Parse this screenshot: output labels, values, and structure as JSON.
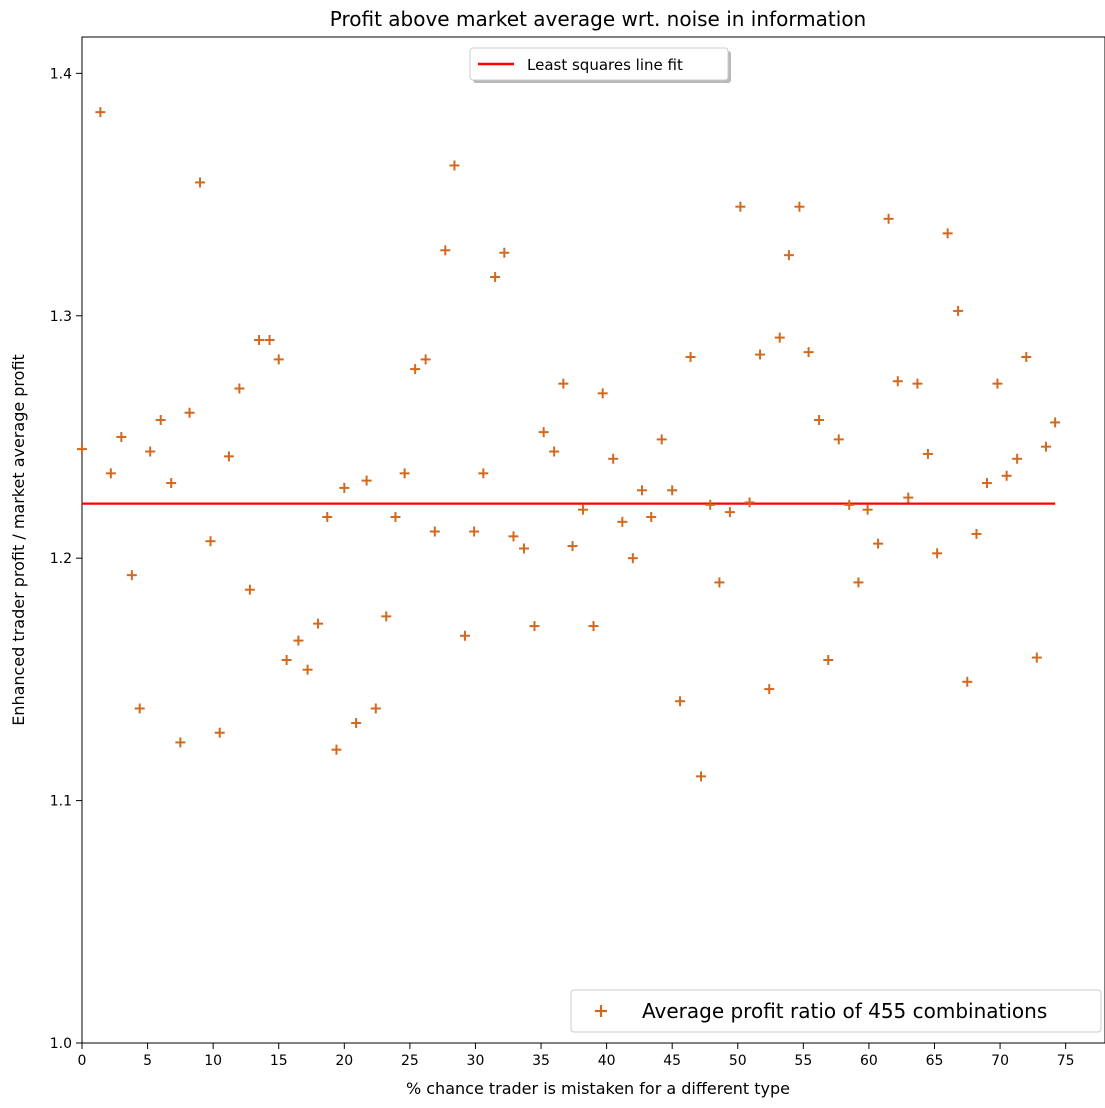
{
  "chart_data": {
    "type": "scatter",
    "title": "Profit above market average wrt. noise in information",
    "xlabel": "% chance trader is mistaken for a different type",
    "ylabel": "Enhanced trader profit / market average profit",
    "xlim": [
      0,
      78
    ],
    "ylim": [
      1.0,
      1.415
    ],
    "xticks": [
      0,
      5,
      10,
      15,
      20,
      25,
      30,
      35,
      40,
      45,
      50,
      55,
      60,
      65,
      70,
      75
    ],
    "yticks": [
      1.0,
      1.1,
      1.2,
      1.3,
      1.4
    ],
    "grid": false,
    "series": [
      {
        "name": "Average profit ratio of 455 combinations",
        "kind": "scatter",
        "marker": "+",
        "color": "#d2691e",
        "points": [
          [
            0.0,
            1.245
          ],
          [
            1.4,
            1.384
          ],
          [
            2.2,
            1.235
          ],
          [
            3.0,
            1.25
          ],
          [
            3.8,
            1.193
          ],
          [
            4.4,
            1.138
          ],
          [
            5.2,
            1.244
          ],
          [
            6.0,
            1.257
          ],
          [
            6.8,
            1.231
          ],
          [
            7.5,
            1.124
          ],
          [
            8.2,
            1.26
          ],
          [
            9.0,
            1.355
          ],
          [
            9.8,
            1.207
          ],
          [
            10.5,
            1.128
          ],
          [
            11.2,
            1.242
          ],
          [
            12.0,
            1.27
          ],
          [
            12.8,
            1.187
          ],
          [
            13.5,
            1.29
          ],
          [
            14.3,
            1.29
          ],
          [
            15.0,
            1.282
          ],
          [
            15.6,
            1.158
          ],
          [
            16.5,
            1.166
          ],
          [
            17.2,
            1.154
          ],
          [
            18.0,
            1.173
          ],
          [
            18.7,
            1.217
          ],
          [
            19.4,
            1.121
          ],
          [
            20.0,
            1.229
          ],
          [
            20.9,
            1.132
          ],
          [
            21.7,
            1.232
          ],
          [
            22.4,
            1.138
          ],
          [
            23.2,
            1.176
          ],
          [
            23.9,
            1.217
          ],
          [
            24.6,
            1.235
          ],
          [
            25.4,
            1.278
          ],
          [
            26.2,
            1.282
          ],
          [
            26.9,
            1.211
          ],
          [
            27.7,
            1.327
          ],
          [
            28.4,
            1.362
          ],
          [
            29.2,
            1.168
          ],
          [
            29.9,
            1.211
          ],
          [
            30.6,
            1.235
          ],
          [
            31.5,
            1.316
          ],
          [
            32.2,
            1.326
          ],
          [
            32.9,
            1.209
          ],
          [
            33.7,
            1.204
          ],
          [
            34.5,
            1.172
          ],
          [
            35.2,
            1.252
          ],
          [
            36.0,
            1.244
          ],
          [
            36.7,
            1.272
          ],
          [
            37.4,
            1.205
          ],
          [
            38.2,
            1.22
          ],
          [
            39.0,
            1.172
          ],
          [
            39.7,
            1.268
          ],
          [
            40.5,
            1.241
          ],
          [
            41.2,
            1.215
          ],
          [
            42.0,
            1.2
          ],
          [
            42.7,
            1.228
          ],
          [
            43.4,
            1.217
          ],
          [
            44.2,
            1.249
          ],
          [
            45.0,
            1.228
          ],
          [
            45.6,
            1.141
          ],
          [
            46.4,
            1.283
          ],
          [
            47.2,
            1.11
          ],
          [
            47.9,
            1.222
          ],
          [
            48.6,
            1.19
          ],
          [
            49.4,
            1.219
          ],
          [
            50.2,
            1.345
          ],
          [
            50.9,
            1.223
          ],
          [
            51.7,
            1.284
          ],
          [
            52.4,
            1.146
          ],
          [
            53.2,
            1.291
          ],
          [
            53.9,
            1.325
          ],
          [
            54.7,
            1.345
          ],
          [
            55.4,
            1.285
          ],
          [
            56.2,
            1.257
          ],
          [
            56.9,
            1.158
          ],
          [
            57.7,
            1.249
          ],
          [
            58.5,
            1.222
          ],
          [
            59.2,
            1.19
          ],
          [
            59.9,
            1.22
          ],
          [
            60.7,
            1.206
          ],
          [
            61.5,
            1.34
          ],
          [
            62.2,
            1.273
          ],
          [
            63.0,
            1.225
          ],
          [
            63.7,
            1.272
          ],
          [
            64.5,
            1.243
          ],
          [
            65.2,
            1.202
          ],
          [
            66.0,
            1.334
          ],
          [
            66.8,
            1.302
          ],
          [
            67.5,
            1.149
          ],
          [
            68.2,
            1.21
          ],
          [
            69.0,
            1.231
          ],
          [
            69.8,
            1.272
          ],
          [
            70.5,
            1.234
          ],
          [
            71.3,
            1.241
          ],
          [
            72.0,
            1.283
          ],
          [
            72.8,
            1.159
          ],
          [
            73.5,
            1.246
          ],
          [
            74.2,
            1.256
          ]
        ]
      },
      {
        "name": "Least squares line fit",
        "kind": "line",
        "color": "#ff0000",
        "x": [
          0,
          74.2
        ],
        "y": [
          1.2225,
          1.2225
        ]
      }
    ],
    "legends": [
      {
        "placement": "upper-center",
        "entries": [
          "Least squares line fit"
        ]
      },
      {
        "placement": "lower-right",
        "entries": [
          "Average profit ratio of 455 combinations"
        ]
      }
    ]
  }
}
